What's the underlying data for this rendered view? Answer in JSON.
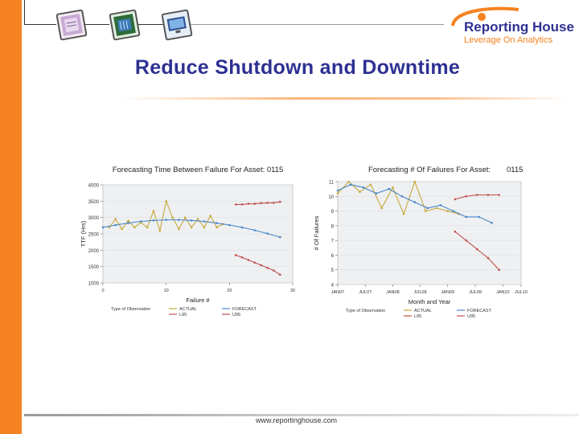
{
  "page": {
    "title": "Reduce Shutdown and Downtime",
    "footer_url": "www.reportinghouse.com",
    "accent_color": "#f58220",
    "title_color": "#2e3192"
  },
  "logo": {
    "brand": "Reporting House",
    "tagline": "Leverage On Analytics"
  },
  "header_thumbnails": [
    "document-thumbnail-icon",
    "chip-thumbnail-icon",
    "monitor-thumbnail-icon"
  ],
  "chart_data": [
    {
      "type": "line",
      "title": "Forecasting Time Between Failure For Asset: 0115",
      "xlabel": "Failure #",
      "ylabel": "TTF (Hrs)",
      "xlim": [
        0,
        30
      ],
      "ylim": [
        1000,
        4000
      ],
      "yticks": [
        1000,
        1500,
        2000,
        2500,
        3000,
        3500,
        4000
      ],
      "ytick_labels": [
        "1000",
        "1500",
        "2000",
        "2500",
        "3000",
        "3500",
        "4000"
      ],
      "xticks": [
        0,
        10,
        20,
        30
      ],
      "xtick_labels": [
        "0",
        "10",
        "20",
        "30"
      ],
      "legend_title": "Type of Observation",
      "series": [
        {
          "name": "ACTUAL",
          "color": "#c9a93a",
          "x": [
            1,
            2,
            3,
            4,
            5,
            6,
            7,
            8,
            9,
            10,
            11,
            12,
            13,
            14,
            15,
            16,
            17,
            18,
            19
          ],
          "y": [
            2700,
            2950,
            2650,
            2900,
            2700,
            2850,
            2700,
            3200,
            2600,
            3500,
            3000,
            2650,
            3000,
            2700,
            2950,
            2700,
            3050,
            2700,
            2800
          ]
        },
        {
          "name": "FORECAST",
          "color": "#4a86c8",
          "x": [
            0,
            2,
            4,
            6,
            8,
            10,
            12,
            14,
            16,
            18,
            20,
            22,
            24,
            26,
            28
          ],
          "y": [
            2700,
            2770,
            2830,
            2880,
            2910,
            2930,
            2930,
            2910,
            2880,
            2830,
            2770,
            2700,
            2610,
            2510,
            2400
          ]
        },
        {
          "name": "L95",
          "color": "#c0504d",
          "x": [
            21,
            22,
            23,
            24,
            25,
            26,
            27,
            28
          ],
          "y": [
            1850,
            1780,
            1700,
            1620,
            1540,
            1460,
            1380,
            1250
          ]
        },
        {
          "name": "U95",
          "color": "#c0504d",
          "x": [
            21,
            22,
            23,
            24,
            25,
            26,
            27,
            28
          ],
          "y": [
            3400,
            3400,
            3420,
            3420,
            3440,
            3450,
            3450,
            3480
          ]
        }
      ]
    },
    {
      "type": "line",
      "title": "Forecasting # Of Failures For Asset:",
      "asset_id": "0115",
      "xlabel": "Month and Year",
      "ylabel": "# Of Failures",
      "xlim": [
        0,
        10
      ],
      "ylim": [
        4,
        11
      ],
      "yticks": [
        4,
        5,
        6,
        7,
        8,
        9,
        10,
        11
      ],
      "ytick_labels": [
        "4",
        "5",
        "6",
        "7",
        "8",
        "9",
        "10",
        "11"
      ],
      "xticks": [
        0,
        1.5,
        3,
        4.5,
        6,
        7.5,
        9,
        10
      ],
      "xtick_labels": [
        "JAN07",
        "JUL07",
        "JAN08",
        "JUL08",
        "JAN09",
        "JUL09",
        "JAN10",
        "JUL10"
      ],
      "legend_title": "Type of Observation",
      "series": [
        {
          "name": "ACTUAL",
          "color": "#c9a93a",
          "x": [
            0,
            0.6,
            1.2,
            1.8,
            2.4,
            3,
            3.6,
            4.2,
            4.8,
            5.4,
            6,
            6.6
          ],
          "y": [
            10.2,
            11,
            10.3,
            10.8,
            9.2,
            10.6,
            8.8,
            11,
            9,
            9.2,
            9,
            8.8
          ]
        },
        {
          "name": "FORECAST",
          "color": "#4a86c8",
          "x": [
            0,
            0.7,
            1.4,
            2.1,
            2.8,
            3.5,
            4.2,
            4.9,
            5.6,
            6.3,
            7,
            7.7,
            8.4
          ],
          "y": [
            10.4,
            10.8,
            10.6,
            10.2,
            10.5,
            10.0,
            9.6,
            9.2,
            9.4,
            9.0,
            8.6,
            8.6,
            8.2
          ]
        },
        {
          "name": "L95",
          "color": "#c0504d",
          "x": [
            6.4,
            7,
            7.6,
            8.2,
            8.8
          ],
          "y": [
            7.6,
            7.0,
            6.4,
            5.8,
            5.0
          ]
        },
        {
          "name": "U95",
          "color": "#c0504d",
          "x": [
            6.4,
            7,
            7.6,
            8.2,
            8.8
          ],
          "y": [
            9.8,
            10.0,
            10.1,
            10.1,
            10.1
          ]
        }
      ]
    }
  ]
}
